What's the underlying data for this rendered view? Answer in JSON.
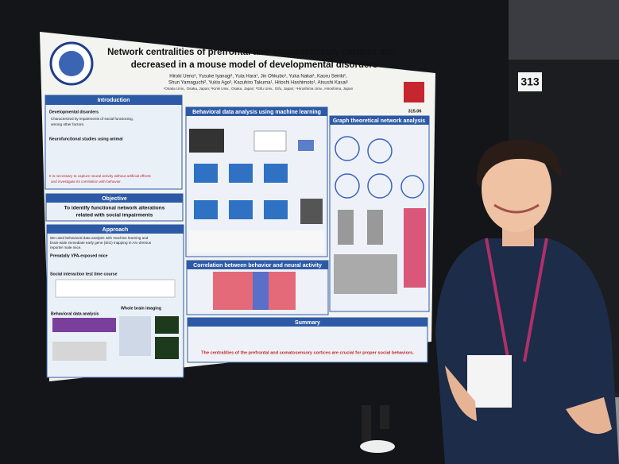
{
  "poster": {
    "title": [
      "Network centralities of prefrontal and somatosensory cortices are",
      "decreased in a mouse model of developmental disorders"
    ],
    "authors": [
      "Hiroki Ueno¹, Yusuke Iyanagi¹, Yuta Hara¹, Jin Ohkubo¹, Yuka Nakai¹, Kaoru Seiriki¹,",
      "Shun Yamaguchi², Yukio Ago³, Kazuhiro Takuma¹, Hitoshi Hashimoto¹, Atsushi Kasai¹"
    ],
    "affiliations": "¹Osaka Univ., Osaka, Japan; ²Kinki Univ., Osaka, Japan; ³Gifu Univ., Gifu, Japan; ⁴Hiroshima Univ., Hiroshima, Japan",
    "poster_id": "315.06",
    "introduction": {
      "heading": "Introduction",
      "lines": [
        "Developmental disorders",
        "Characterized by impairments of social functioning,",
        "among other factors.",
        "Neurofunctional studies using animal",
        "It is necessary to capture neural activity without artificial effects",
        "and investigate its correlation with behavior."
      ]
    },
    "objective": {
      "heading": "Objective",
      "lines": [
        "To identify functional network alterations",
        "related with social impairments"
      ]
    },
    "approach": {
      "heading": "Approach",
      "lines": [
        "We used behavioral data analysis with machine learning and",
        "brain-wide immediate early gene (IEG) mapping in Arc-dVenus",
        "reporter male mice.",
        "Prenatally VPA-exposed mice",
        "Social interaction test time course",
        "Behavioral data analysis",
        "Whole brain imaging"
      ]
    },
    "behavior": {
      "heading": "Behavioral data analysis using machine learning"
    },
    "graph": {
      "heading": "Graph theoretical network analysis"
    },
    "correlation": {
      "heading": "Correlation between behavior and neural activity"
    },
    "summary": {
      "heading": "Summary",
      "conclusion": "The centralities of the prefrontal and somatosensory cortices are crucial for proper social behaviors."
    }
  },
  "booth": "313"
}
